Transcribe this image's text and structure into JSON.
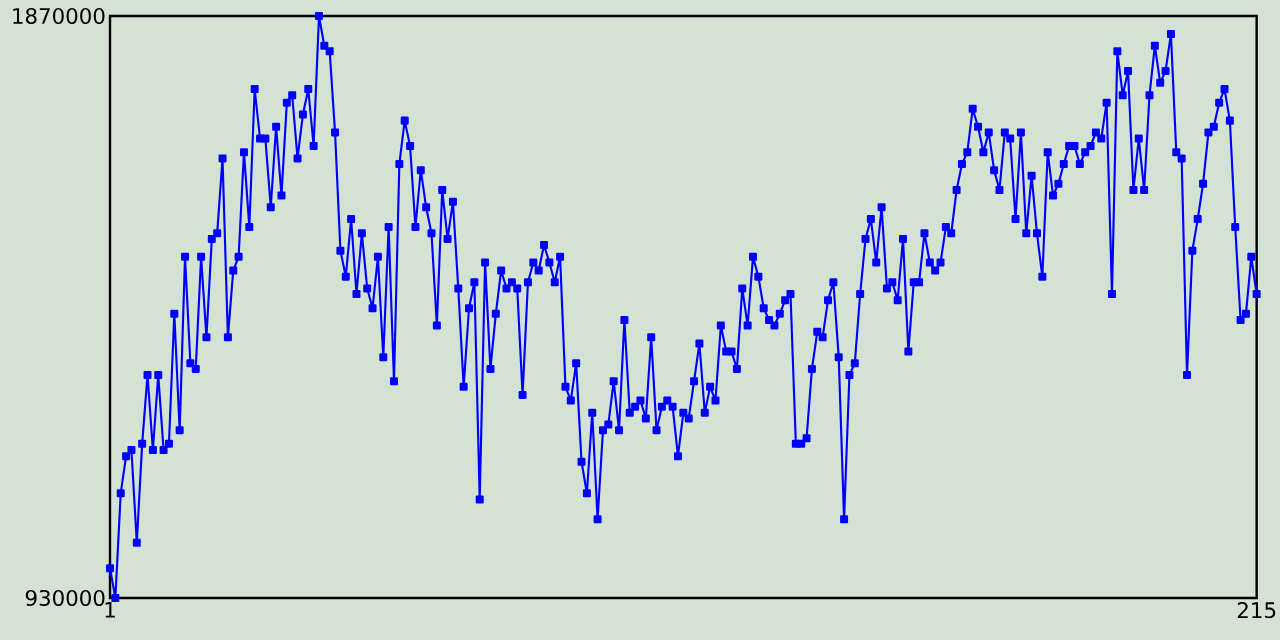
{
  "chart_data": {
    "type": "line",
    "color": "#0000ff",
    "marker": "square",
    "line_style": "solid",
    "xlim": [
      1,
      215
    ],
    "ylim": [
      930000,
      1870000
    ],
    "xticks": [
      1,
      215
    ],
    "yticks": [
      930000,
      1870000
    ],
    "x": [
      1,
      2,
      3,
      4,
      5,
      6,
      7,
      8,
      9,
      10,
      11,
      12,
      13,
      14,
      15,
      16,
      17,
      18,
      19,
      20,
      21,
      22,
      23,
      24,
      25,
      26,
      27,
      28,
      29,
      30,
      31,
      32,
      33,
      34,
      35,
      36,
      37,
      38,
      39,
      40,
      41,
      42,
      43,
      44,
      45,
      46,
      47,
      48,
      49,
      50,
      51,
      52,
      53,
      54,
      55,
      56,
      57,
      58,
      59,
      60,
      61,
      62,
      63,
      64,
      65,
      66,
      67,
      68,
      69,
      70,
      71,
      72,
      73,
      74,
      75,
      76,
      77,
      78,
      79,
      80,
      81,
      82,
      83,
      84,
      85,
      86,
      87,
      88,
      89,
      90,
      91,
      92,
      93,
      94,
      95,
      96,
      97,
      98,
      99,
      100,
      101,
      102,
      103,
      104,
      105,
      106,
      107,
      108,
      109,
      110,
      111,
      112,
      113,
      114,
      115,
      116,
      117,
      118,
      119,
      120,
      121,
      122,
      123,
      124,
      125,
      126,
      127,
      128,
      129,
      130,
      131,
      132,
      133,
      134,
      135,
      136,
      137,
      138,
      139,
      140,
      141,
      142,
      143,
      144,
      145,
      146,
      147,
      148,
      149,
      150,
      151,
      152,
      153,
      154,
      155,
      156,
      157,
      158,
      159,
      160,
      161,
      162,
      163,
      164,
      165,
      166,
      167,
      168,
      169,
      170,
      171,
      172,
      173,
      174,
      175,
      176,
      177,
      178,
      179,
      180,
      181,
      182,
      183,
      184,
      185,
      186,
      187,
      188,
      189,
      190,
      191,
      192,
      193,
      194,
      195,
      196,
      197,
      198,
      199,
      200,
      201,
      202,
      203,
      204,
      205,
      206,
      207,
      208,
      209,
      210,
      211,
      212,
      213,
      214,
      215
    ],
    "values": [
      978000,
      930000,
      1099000,
      1159000,
      1169000,
      1019000,
      1179000,
      1290000,
      1169000,
      1290000,
      1169000,
      1179000,
      1389000,
      1201000,
      1481000,
      1309000,
      1300000,
      1481000,
      1351000,
      1510000,
      1519000,
      1640000,
      1351000,
      1459000,
      1481000,
      1650000,
      1529000,
      1752000,
      1672000,
      1672000,
      1561000,
      1691000,
      1580000,
      1730000,
      1742000,
      1640000,
      1711000,
      1752000,
      1660000,
      1870000,
      1822000,
      1813000,
      1682000,
      1491000,
      1449000,
      1542000,
      1421000,
      1519000,
      1430000,
      1398000,
      1481000,
      1319000,
      1529000,
      1280000,
      1631000,
      1701000,
      1660000,
      1529000,
      1621000,
      1561000,
      1519000,
      1370000,
      1589000,
      1510000,
      1570000,
      1430000,
      1271000,
      1398000,
      1440000,
      1089000,
      1472000,
      1300000,
      1389000,
      1459000,
      1430000,
      1440000,
      1430000,
      1258000,
      1440000,
      1472000,
      1459000,
      1500000,
      1472000,
      1440000,
      1481000,
      1271000,
      1249000,
      1309000,
      1150000,
      1099000,
      1229000,
      1057000,
      1201000,
      1210000,
      1280000,
      1201000,
      1379000,
      1229000,
      1239000,
      1249000,
      1220000,
      1351000,
      1201000,
      1239000,
      1249000,
      1239000,
      1159000,
      1229000,
      1220000,
      1280000,
      1341000,
      1229000,
      1271000,
      1249000,
      1370000,
      1328000,
      1328000,
      1300000,
      1430000,
      1370000,
      1481000,
      1449000,
      1398000,
      1379000,
      1370000,
      1389000,
      1411000,
      1421000,
      1179000,
      1179000,
      1188000,
      1300000,
      1360000,
      1351000,
      1411000,
      1440000,
      1319000,
      1057000,
      1290000,
      1309000,
      1421000,
      1510000,
      1542000,
      1472000,
      1561000,
      1430000,
      1440000,
      1411000,
      1510000,
      1328000,
      1440000,
      1440000,
      1519000,
      1472000,
      1459000,
      1472000,
      1529000,
      1519000,
      1589000,
      1631000,
      1650000,
      1720000,
      1691000,
      1650000,
      1682000,
      1621000,
      1589000,
      1682000,
      1672000,
      1542000,
      1682000,
      1519000,
      1612000,
      1519000,
      1449000,
      1650000,
      1580000,
      1599000,
      1631000,
      1660000,
      1660000,
      1631000,
      1650000,
      1660000,
      1682000,
      1672000,
      1730000,
      1421000,
      1813000,
      1742000,
      1781000,
      1589000,
      1672000,
      1589000,
      1742000,
      1822000,
      1762000,
      1781000,
      1841000,
      1650000,
      1640000,
      1290000,
      1491000,
      1542000,
      1599000,
      1682000,
      1691000,
      1730000,
      1752000,
      1701000,
      1529000,
      1379000,
      1389000,
      1481000,
      1421000
    ]
  }
}
